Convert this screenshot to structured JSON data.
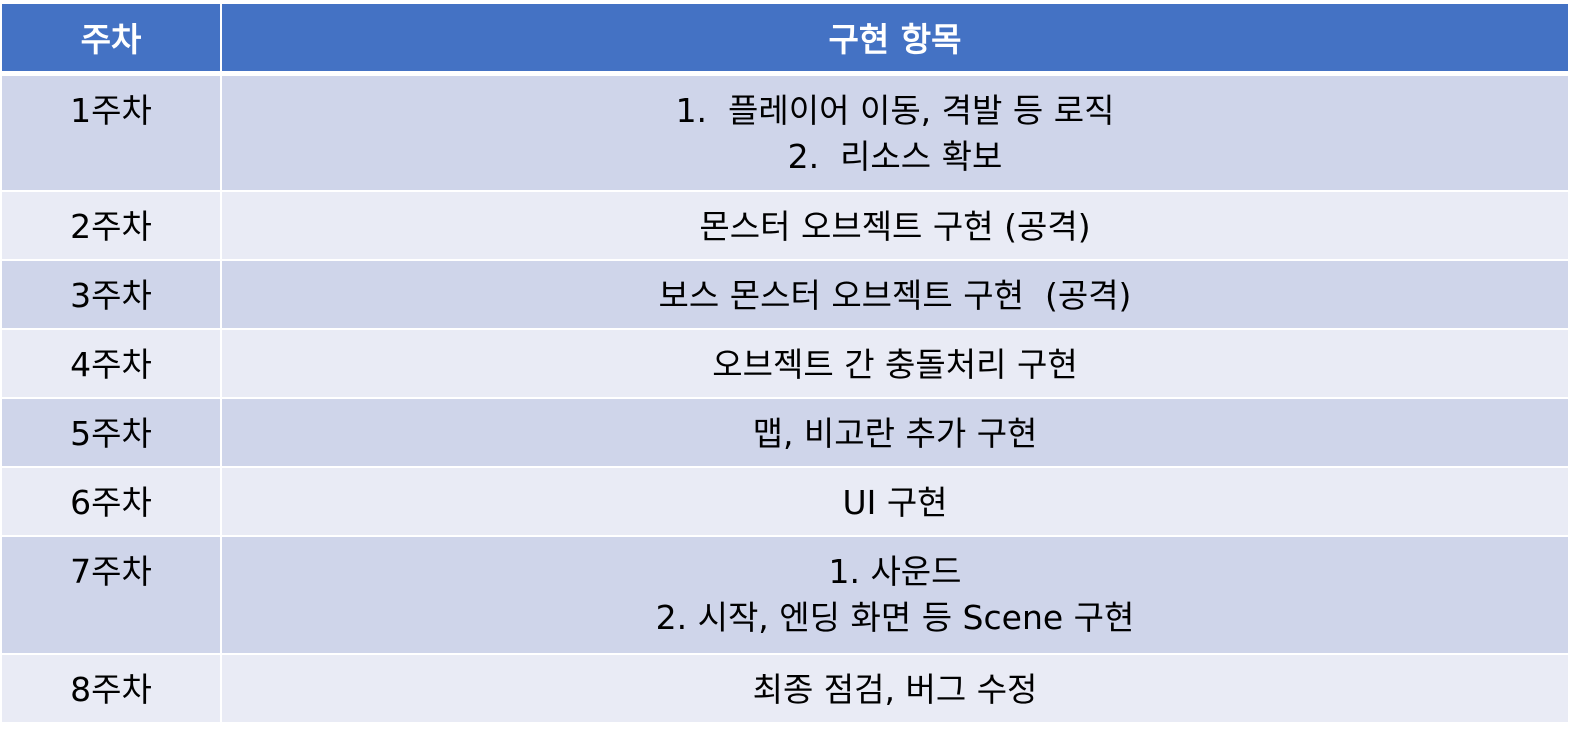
{
  "table": {
    "headers": {
      "week": "주차",
      "item": "구현 항목"
    },
    "rows": [
      {
        "week": "1주차",
        "lines": [
          "1.  플레이어 이동, 격발 등 로직",
          "2.  리소스 확보"
        ]
      },
      {
        "week": "2주차",
        "lines": [
          "몬스터 오브젝트 구현 (공격)"
        ]
      },
      {
        "week": "3주차",
        "lines": [
          "보스 몬스터 오브젝트 구현  (공격)"
        ]
      },
      {
        "week": "4주차",
        "lines": [
          "오브젝트 간 충돌처리 구현"
        ]
      },
      {
        "week": "5주차",
        "lines": [
          "맵, 비고란 추가 구현"
        ]
      },
      {
        "week": "6주차",
        "lines": [
          "UI 구현"
        ]
      },
      {
        "week": "7주차",
        "lines": [
          "1. 사운드",
          "2. 시작, 엔딩 화면 등 Scene 구현"
        ]
      },
      {
        "week": "8주차",
        "lines": [
          "최종 점검, 버그 수정"
        ]
      }
    ]
  },
  "colors": {
    "header_bg": "#4472c4",
    "row_odd_bg": "#cfd5ea",
    "row_even_bg": "#e9ebf5",
    "header_text": "#ffffff",
    "body_text": "#000000"
  }
}
